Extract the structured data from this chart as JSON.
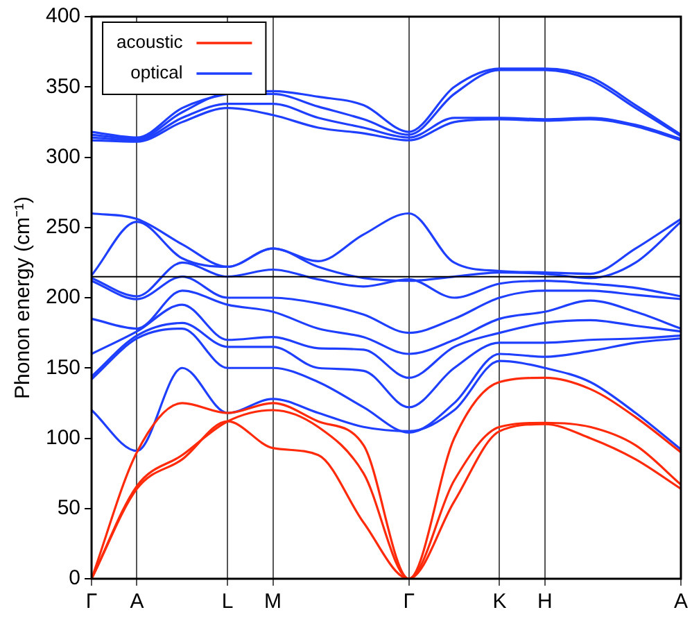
{
  "chart_data": {
    "type": "line",
    "ylabel": "Phonon energy (cm⁻¹)",
    "categories": [
      "Γ",
      "A",
      null,
      "L",
      "M",
      null,
      null,
      "Γ",
      null,
      "K",
      "H",
      null,
      null,
      "A"
    ],
    "ylim": [
      0,
      400
    ],
    "yticks": [
      0,
      50,
      100,
      150,
      200,
      250,
      300,
      350,
      400
    ],
    "grid": "x",
    "legend": "top left",
    "marker": "none",
    "line_style": "solid",
    "ref_lines": [
      {
        "axis": "y",
        "value": 215,
        "color": "#000000"
      }
    ],
    "series": [
      {
        "name": "acoustic",
        "color": "#ff2a0a",
        "values": [
          0,
          64,
          85,
          112,
          93,
          88,
          40,
          0,
          55,
          105,
          110,
          100,
          85,
          64
        ]
      },
      {
        "color": "#ff2a0a",
        "values": [
          0,
          66,
          88,
          112,
          120,
          108,
          75,
          0,
          70,
          108,
          111,
          108,
          95,
          67
        ]
      },
      {
        "color": "#ff2a0a",
        "values": [
          0,
          90,
          125,
          118,
          125,
          112,
          95,
          0,
          100,
          140,
          143,
          135,
          115,
          90
        ]
      },
      {
        "name": "optical",
        "color": "#1f3fff",
        "values": [
          120,
          91,
          150,
          118,
          128,
          118,
          108,
          105,
          120,
          155,
          150,
          140,
          118,
          92
        ]
      },
      {
        "color": "#1f3fff",
        "values": [
          142,
          171,
          178,
          150,
          150,
          140,
          122,
          104,
          125,
          160,
          158,
          162,
          168,
          171
        ]
      },
      {
        "color": "#1f3fff",
        "values": [
          144,
          173,
          182,
          165,
          165,
          150,
          148,
          122,
          150,
          168,
          168,
          170,
          171,
          173
        ]
      },
      {
        "color": "#1f3fff",
        "values": [
          160,
          176,
          195,
          170,
          172,
          164,
          163,
          143,
          165,
          175,
          182,
          184,
          180,
          176
        ]
      },
      {
        "color": "#1f3fff",
        "values": [
          185,
          178,
          205,
          195,
          190,
          178,
          172,
          160,
          170,
          185,
          190,
          198,
          190,
          178
        ]
      },
      {
        "color": "#1f3fff",
        "values": [
          212,
          199,
          215,
          200,
          200,
          196,
          188,
          175,
          185,
          200,
          205,
          205,
          202,
          199
        ]
      },
      {
        "color": "#1f3fff",
        "values": [
          214,
          201,
          225,
          215,
          220,
          213,
          208,
          213,
          200,
          210,
          212,
          210,
          207,
          201
        ]
      },
      {
        "color": "#1f3fff",
        "values": [
          216,
          254,
          228,
          222,
          235,
          222,
          214,
          212,
          215,
          218,
          217,
          214,
          225,
          254
        ]
      },
      {
        "color": "#1f3fff",
        "values": [
          260,
          256,
          238,
          222,
          235,
          226,
          245,
          260,
          225,
          219,
          218,
          217,
          235,
          256
        ]
      },
      {
        "color": "#1f3fff",
        "values": [
          312,
          311,
          325,
          335,
          330,
          321,
          317,
          312,
          325,
          327,
          326,
          327,
          322,
          312
        ]
      },
      {
        "color": "#1f3fff",
        "values": [
          314,
          312,
          328,
          338,
          338,
          328,
          321,
          314,
          328,
          328,
          327,
          328,
          323,
          313
        ]
      },
      {
        "color": "#1f3fff",
        "values": [
          316,
          313,
          332,
          345,
          345,
          336,
          327,
          316,
          345,
          362,
          362,
          355,
          335,
          315
        ]
      },
      {
        "color": "#1f3fff",
        "values": [
          318,
          314,
          335,
          345,
          347,
          343,
          337,
          318,
          350,
          363,
          363,
          357,
          337,
          316
        ]
      }
    ]
  }
}
